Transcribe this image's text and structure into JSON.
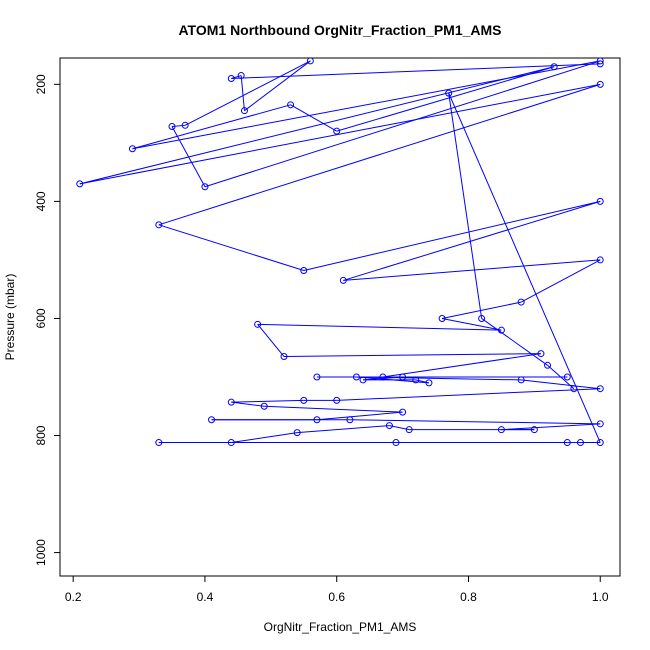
{
  "chart_data": {
    "type": "line",
    "title": "ATOM1 Northbound OrgNitr_Fraction_PM1_AMS",
    "xlabel": "OrgNitr_Fraction_PM1_AMS",
    "ylabel": "Pressure (mbar)",
    "xlim": [
      0.18,
      1.03
    ],
    "ylim": [
      1040,
      155
    ],
    "y_inverted": true,
    "grid": false,
    "legend": "none",
    "x_ticks": [
      "0.2",
      "0.4",
      "0.6",
      "0.8",
      "1.0"
    ],
    "y_ticks": [
      "200",
      "400",
      "600",
      "800",
      "1000"
    ],
    "series": [
      {
        "color": "#0000ff",
        "marker": "open-circle",
        "x": [
          1.0,
          0.44,
          0.455,
          0.46,
          0.56,
          0.37,
          0.35,
          0.4,
          1.0,
          0.29,
          0.53,
          0.6,
          0.93,
          0.21,
          1.0,
          0.33,
          0.55,
          1.0,
          0.61,
          1.0,
          0.88,
          0.76,
          0.85,
          0.48,
          0.52,
          0.91,
          0.67,
          0.57,
          0.95,
          0.7,
          0.64,
          0.72,
          0.74,
          0.63,
          0.88,
          1.0,
          0.6,
          0.55,
          0.44,
          0.49,
          0.7,
          0.57,
          0.41,
          0.62,
          1.0,
          0.85,
          0.9,
          0.71,
          0.68,
          0.54,
          0.44,
          0.33,
          0.69,
          0.95,
          0.97,
          1.0,
          0.77,
          0.82,
          0.92,
          0.96
        ],
        "y": [
          165,
          190,
          185,
          245,
          160,
          270,
          272,
          375,
          160,
          310,
          235,
          280,
          170,
          370,
          200,
          440,
          518,
          400,
          535,
          500,
          572,
          600,
          620,
          610,
          665,
          660,
          700,
          700,
          700,
          700,
          705,
          705,
          710,
          700,
          705,
          720,
          740,
          740,
          743,
          750,
          760,
          773,
          773,
          773,
          780,
          790,
          790,
          790,
          783,
          795,
          812,
          812,
          812,
          812,
          812,
          812,
          215,
          600,
          680,
          720
        ]
      }
    ]
  }
}
